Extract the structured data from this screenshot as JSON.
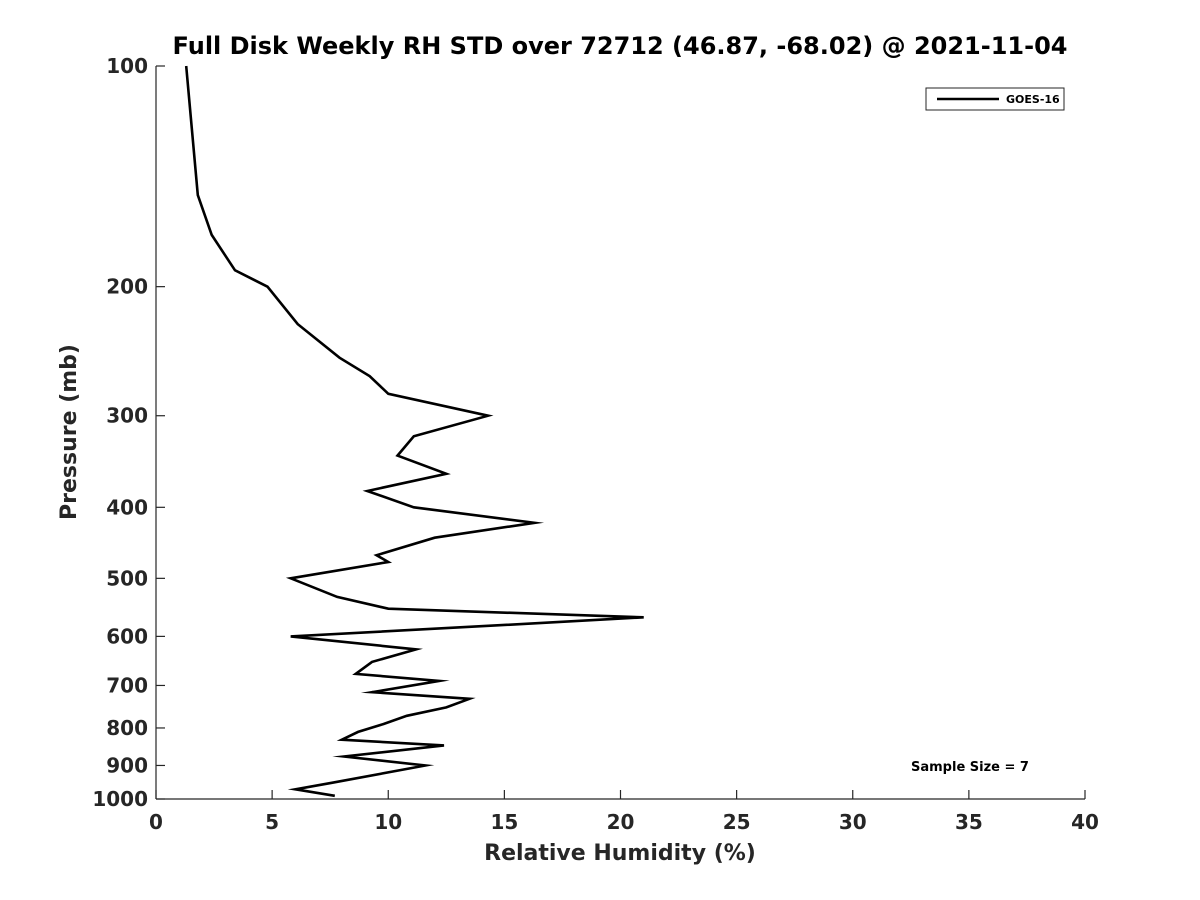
{
  "chart_data": {
    "type": "line",
    "title": "Full Disk Weekly RH STD over 72712 (46.87, -68.02) @ 2021-11-04",
    "xlabel": "Relative Humidity (%)",
    "ylabel": "Pressure (mb)",
    "xlim": [
      0,
      40
    ],
    "ylim": [
      100,
      1000
    ],
    "y_scale": "log",
    "y_reversed": true,
    "x_ticks": [
      0,
      5,
      10,
      15,
      20,
      25,
      30,
      35,
      40
    ],
    "y_ticks": [
      100,
      200,
      300,
      400,
      500,
      600,
      700,
      800,
      900,
      1000
    ],
    "grid": false,
    "legend_position": "top-right",
    "annotation": "Sample Size = 7",
    "line_color": "#000000",
    "series": [
      {
        "name": "GOES-16",
        "points": [
          [
            1.3,
            100
          ],
          [
            1.8,
            150
          ],
          [
            2.4,
            170
          ],
          [
            3.4,
            190
          ],
          [
            4.8,
            200
          ],
          [
            6.1,
            225
          ],
          [
            7.9,
            250
          ],
          [
            9.2,
            265
          ],
          [
            10.0,
            280
          ],
          [
            14.3,
            300
          ],
          [
            11.1,
            320
          ],
          [
            10.4,
            340
          ],
          [
            12.5,
            360
          ],
          [
            9.1,
            380
          ],
          [
            11.1,
            400
          ],
          [
            16.3,
            420
          ],
          [
            12.0,
            440
          ],
          [
            9.5,
            465
          ],
          [
            10.0,
            475
          ],
          [
            5.8,
            500
          ],
          [
            7.8,
            530
          ],
          [
            10.0,
            550
          ],
          [
            21.0,
            565
          ],
          [
            14.5,
            580
          ],
          [
            5.8,
            600
          ],
          [
            11.2,
            625
          ],
          [
            9.3,
            650
          ],
          [
            8.6,
            675
          ],
          [
            12.2,
            690
          ],
          [
            9.3,
            715
          ],
          [
            13.5,
            730
          ],
          [
            12.5,
            750
          ],
          [
            10.8,
            770
          ],
          [
            9.8,
            790
          ],
          [
            8.7,
            810
          ],
          [
            8.0,
            830
          ],
          [
            12.4,
            845
          ],
          [
            8.1,
            875
          ],
          [
            11.6,
            900
          ],
          [
            7.6,
            950
          ],
          [
            6.0,
            970
          ],
          [
            7.7,
            990
          ]
        ]
      }
    ]
  }
}
